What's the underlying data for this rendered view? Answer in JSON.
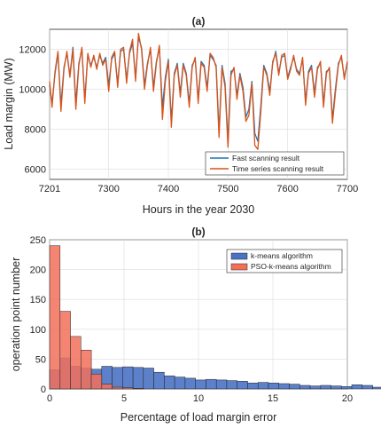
{
  "chart_data": [
    {
      "type": "line",
      "title": "(a)",
      "xlabel": "Hours in the year 2030",
      "ylabel": "Load margin (MW)",
      "xlim": [
        7201,
        7700
      ],
      "ylim": [
        5500,
        13000
      ],
      "xticks": [
        7201,
        7300,
        7400,
        7500,
        7600,
        7700
      ],
      "yticks": [
        6000,
        8000,
        10000,
        12000
      ],
      "grid": true,
      "legend_position": "bottom-right",
      "series": [
        {
          "name": "Fast scanning result",
          "color": "#1f77b4",
          "x": [
            7201,
            7205,
            7210,
            7215,
            7220,
            7225,
            7230,
            7235,
            7240,
            7245,
            7250,
            7255,
            7260,
            7265,
            7270,
            7275,
            7280,
            7285,
            7290,
            7295,
            7300,
            7305,
            7310,
            7315,
            7320,
            7325,
            7330,
            7335,
            7340,
            7345,
            7350,
            7355,
            7360,
            7365,
            7370,
            7375,
            7380,
            7385,
            7390,
            7395,
            7400,
            7405,
            7410,
            7415,
            7420,
            7425,
            7430,
            7435,
            7440,
            7445,
            7450,
            7455,
            7460,
            7465,
            7470,
            7475,
            7480,
            7485,
            7490,
            7495,
            7500,
            7505,
            7510,
            7515,
            7520,
            7525,
            7530,
            7535,
            7540,
            7545,
            7550,
            7555,
            7560,
            7565,
            7570,
            7575,
            7580,
            7585,
            7590,
            7595,
            7600,
            7605,
            7610,
            7615,
            7620,
            7625,
            7630,
            7635,
            7640,
            7645,
            7650,
            7655,
            7660,
            7665,
            7670,
            7675,
            7680,
            7685,
            7690,
            7695,
            7700
          ],
          "y": [
            10200,
            9300,
            10800,
            11800,
            9200,
            11100,
            11800,
            10700,
            12100,
            9300,
            11300,
            12000,
            9500,
            11700,
            11200,
            11600,
            11100,
            11700,
            11300,
            11600,
            10200,
            11500,
            11800,
            10300,
            11900,
            12000,
            10500,
            11800,
            12300,
            10600,
            12600,
            12100,
            10200,
            11300,
            12000,
            10100,
            11400,
            12100,
            9100,
            10600,
            11500,
            8400,
            10800,
            11300,
            9800,
            11300,
            10800,
            9300,
            11200,
            11500,
            9500,
            11400,
            11200,
            10100,
            11700,
            11500,
            11200,
            7900,
            11200,
            10300,
            7400,
            10900,
            11000,
            9700,
            10800,
            10100,
            8600,
            9000,
            10400,
            7800,
            7400,
            9200,
            11200,
            10800,
            9900,
            11300,
            11900,
            10800,
            11600,
            11700,
            10600,
            11100,
            11600,
            11000,
            10800,
            11500,
            9400,
            10900,
            11200,
            9800,
            11100,
            11300,
            9300,
            10900,
            11000,
            8500,
            10000,
            11300,
            11600,
            10600,
            11300
          ]
        },
        {
          "name": "Time series scanning result",
          "color": "#d95319",
          "x": [
            7201,
            7205,
            7210,
            7215,
            7220,
            7225,
            7230,
            7235,
            7240,
            7245,
            7250,
            7255,
            7260,
            7265,
            7270,
            7275,
            7280,
            7285,
            7290,
            7295,
            7300,
            7305,
            7310,
            7315,
            7320,
            7325,
            7330,
            7335,
            7340,
            7345,
            7350,
            7355,
            7360,
            7365,
            7370,
            7375,
            7380,
            7385,
            7390,
            7395,
            7400,
            7405,
            7410,
            7415,
            7420,
            7425,
            7430,
            7435,
            7440,
            7445,
            7450,
            7455,
            7460,
            7465,
            7470,
            7475,
            7480,
            7485,
            7490,
            7495,
            7500,
            7505,
            7510,
            7515,
            7520,
            7525,
            7530,
            7535,
            7540,
            7545,
            7550,
            7555,
            7560,
            7565,
            7570,
            7575,
            7580,
            7585,
            7590,
            7595,
            7600,
            7605,
            7610,
            7615,
            7620,
            7625,
            7630,
            7635,
            7640,
            7645,
            7650,
            7655,
            7660,
            7665,
            7670,
            7675,
            7680,
            7685,
            7690,
            7695,
            7700
          ],
          "y": [
            10400,
            9100,
            10900,
            11900,
            8900,
            11000,
            11900,
            10600,
            12000,
            9000,
            11200,
            12100,
            9300,
            11800,
            11100,
            11700,
            11000,
            11800,
            11200,
            11500,
            9900,
            11600,
            11900,
            10100,
            12000,
            12100,
            10300,
            11900,
            12500,
            10400,
            12800,
            12000,
            10000,
            11200,
            12100,
            9900,
            11300,
            12200,
            8500,
            10400,
            11400,
            8100,
            10700,
            11200,
            9600,
            11200,
            10700,
            9100,
            11100,
            11600,
            9300,
            11300,
            11100,
            9900,
            11800,
            11600,
            11100,
            7600,
            11100,
            10100,
            7100,
            10700,
            11100,
            9500,
            10700,
            9900,
            8400,
            8700,
            10300,
            7200,
            7000,
            8900,
            11100,
            10700,
            9700,
            11400,
            11800,
            10700,
            11700,
            11800,
            10500,
            11000,
            11700,
            10900,
            10700,
            11600,
            9200,
            10800,
            11100,
            9600,
            11000,
            11400,
            9100,
            10800,
            11100,
            8300,
            9800,
            11200,
            11700,
            10500,
            11400
          ]
        }
      ]
    },
    {
      "type": "bar",
      "title": "(b)",
      "xlabel": "Percentage of load margin error",
      "ylabel": "operation point number",
      "xlim": [
        0,
        20
      ],
      "ylim": [
        0,
        250
      ],
      "xticks": [
        0,
        5,
        10,
        15,
        20
      ],
      "yticks": [
        0,
        50,
        100,
        150,
        200,
        250
      ],
      "grid": true,
      "legend_position": "top-right",
      "bin_width": 0.7,
      "bin_start": 0,
      "series": [
        {
          "name": "k-means algorithm",
          "color": "#4a72c4",
          "values": [
            32,
            52,
            38,
            35,
            33,
            38,
            36,
            37,
            36,
            35,
            28,
            22,
            20,
            18,
            15,
            16,
            15,
            14,
            13,
            10,
            11,
            10,
            9,
            8,
            6,
            5,
            6,
            5,
            4,
            7,
            6,
            3,
            4,
            3,
            4
          ]
        },
        {
          "name": "PSO-k-means algorithm",
          "color": "#f2705a",
          "values": [
            240,
            130,
            88,
            65,
            25,
            8,
            3,
            2,
            1,
            0,
            0,
            0,
            0,
            0,
            0,
            0,
            0,
            0,
            0,
            0,
            0,
            0,
            0,
            0,
            0,
            0,
            0,
            0,
            0,
            0,
            0,
            0,
            0,
            0,
            0
          ]
        }
      ]
    }
  ]
}
